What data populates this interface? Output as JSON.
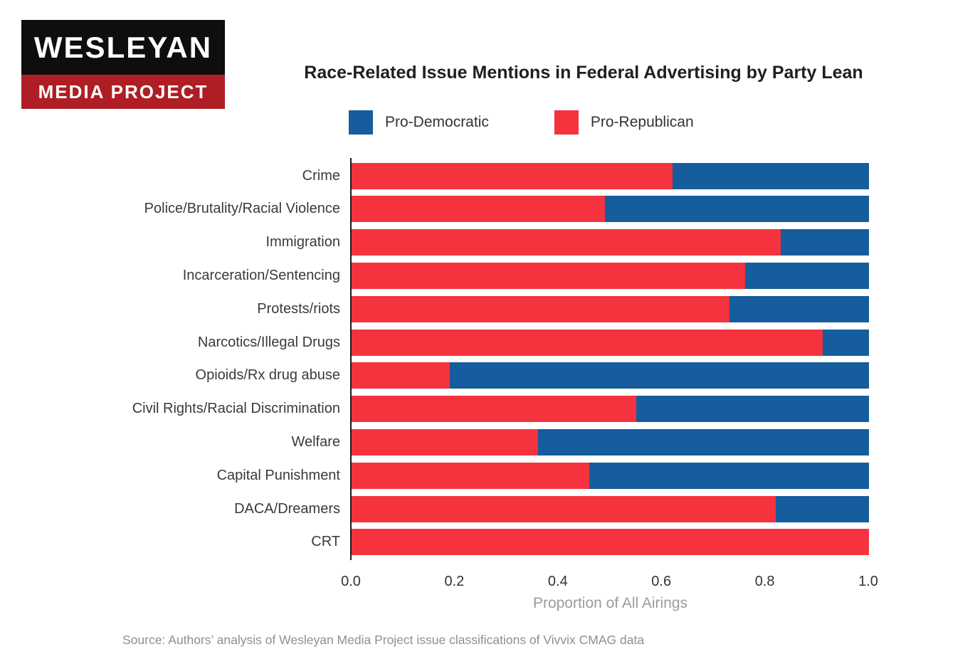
{
  "logo": {
    "line1": "WESLEYAN",
    "line2": "MEDIA PROJECT",
    "top_bg": "#0e0e0e",
    "bottom_bg": "#AF1E24"
  },
  "title": "Race-Related Issue Mentions in Federal Advertising by Party Lean",
  "legend": [
    {
      "label": "Pro-Democratic",
      "color": "#155D9C"
    },
    {
      "label": "Pro-Republican",
      "color": "#F4333E"
    }
  ],
  "chart_data": {
    "type": "bar",
    "orientation": "horizontal",
    "stacked": true,
    "title": "Race-Related Issue Mentions in Federal Advertising by Party Lean",
    "categories": [
      "Crime",
      "Police/Brutality/Racial Violence",
      "Immigration",
      "Incarceration/Sentencing",
      "Protests/riots",
      "Narcotics/Illegal Drugs",
      "Opioids/Rx drug abuse",
      "Civil Rights/Racial Discrimination",
      "Welfare",
      "Capital Punishment",
      "DACA/Dreamers",
      "CRT"
    ],
    "series": [
      {
        "name": "Pro-Republican",
        "color": "#F4333E",
        "values": [
          0.62,
          0.49,
          0.83,
          0.76,
          0.73,
          0.91,
          0.19,
          0.55,
          0.36,
          0.46,
          0.82,
          1.0
        ]
      },
      {
        "name": "Pro-Democratic",
        "color": "#155D9C",
        "values": [
          0.38,
          0.51,
          0.17,
          0.24,
          0.27,
          0.09,
          0.81,
          0.45,
          0.64,
          0.54,
          0.18,
          0.0
        ]
      }
    ],
    "xlabel": "Proportion of All Airings",
    "x_ticks": [
      "0.0",
      "0.2",
      "0.4",
      "0.6",
      "0.8",
      "1.0"
    ],
    "xlim": [
      0.0,
      1.0
    ],
    "grid": false,
    "legend_position": "top"
  },
  "source": "Source: Authors’ analysis of Wesleyan Media Project issue classifications of Vivvix CMAG data"
}
